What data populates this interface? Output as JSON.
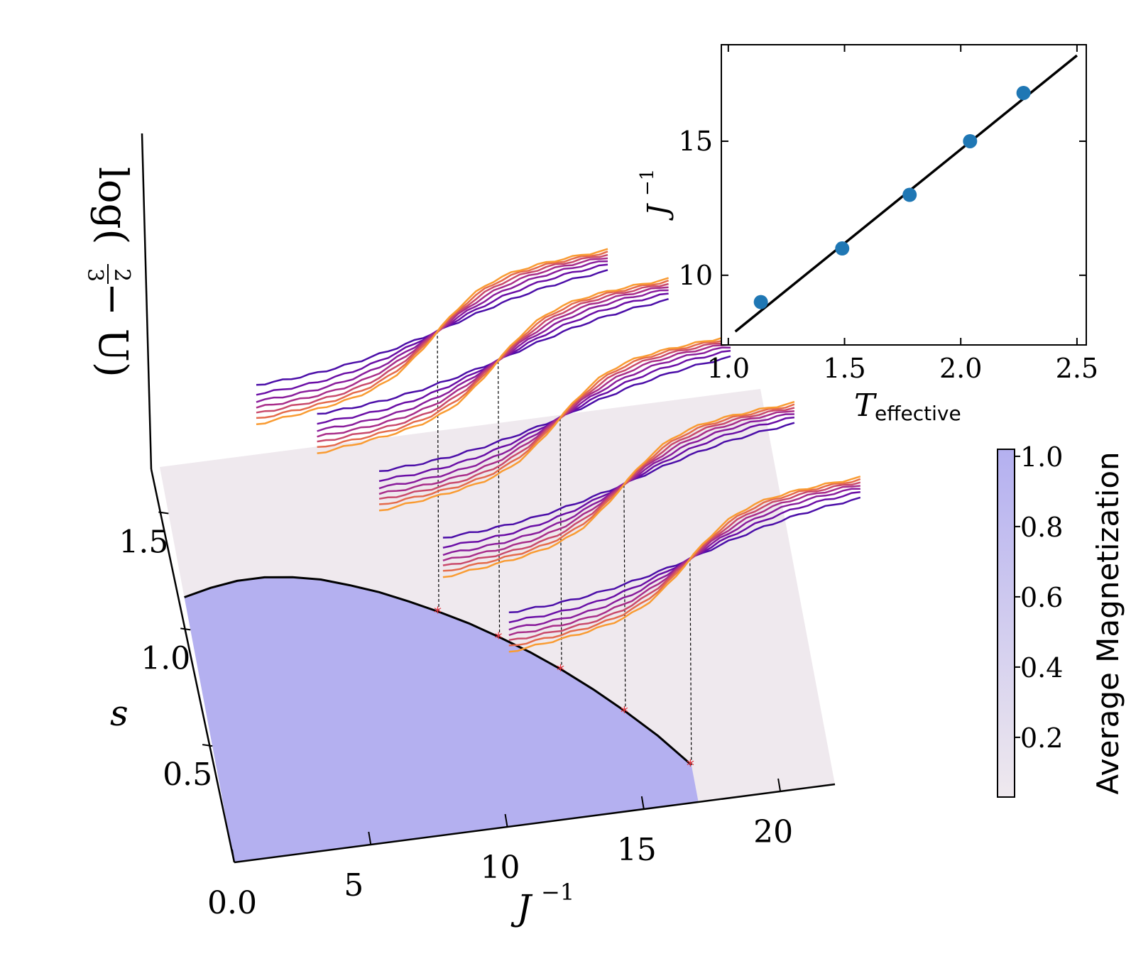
{
  "chart_data": [
    {
      "type": "surface3d",
      "title": "",
      "xlabel": "J^{-1}",
      "xlabel_base": "J",
      "xlabel_sup": "−1",
      "ylabel": "s",
      "zlabel": "log(2/3 − U)",
      "zlabel_text": "log(",
      "zlabel_num": "2",
      "zlabel_den": "3",
      "zlabel_tail": " − U)",
      "x_ticks": [
        "0.0",
        "5",
        "10",
        "15",
        "20"
      ],
      "s_ticks": [
        "0.5",
        "1.0",
        "1.5"
      ],
      "x_range": [
        0,
        22
      ],
      "s_range": [
        0,
        1.7
      ],
      "colorbar": {
        "label": "Average Magnetization",
        "ticks": [
          "0.2",
          "0.4",
          "0.6",
          "0.8",
          "1.0"
        ],
        "tick_values": [
          0.2,
          0.4,
          0.6,
          0.8,
          1.0
        ],
        "range": [
          0.03,
          1.02
        ],
        "color_low": "#efe9ee",
        "color_high": "#b4b0f0"
      },
      "phase_boundary": {
        "color": "#000000",
        "x": [
          0,
          1,
          2,
          3,
          4,
          5,
          6,
          7,
          8,
          9,
          10,
          11,
          12,
          13,
          14,
          15,
          16,
          17
        ],
        "s": [
          1.14,
          1.165,
          1.18,
          1.18,
          1.165,
          1.14,
          1.1,
          1.055,
          1.0,
          0.94,
          0.875,
          0.8,
          0.72,
          0.63,
          0.53,
          0.42,
          0.3,
          0.16
        ]
      },
      "critical_points": {
        "color": "#e8343e",
        "x": [
          9,
          11,
          13,
          15,
          17
        ],
        "s": [
          0.94,
          0.8,
          0.63,
          0.42,
          0.16
        ]
      },
      "binder_curves": {
        "note_colors": [
          "#4b0ea8",
          "#6a0ea6",
          "#8a1d9c",
          "#a92e8a",
          "#c94a6c",
          "#e46b4c",
          "#f99b32"
        ],
        "groups": [
          {
            "J_inv": 9,
            "curves": 7
          },
          {
            "J_inv": 11,
            "curves": 7
          },
          {
            "J_inv": 13,
            "curves": 7
          },
          {
            "J_inv": 15,
            "curves": 7
          },
          {
            "J_inv": 17,
            "curves": 7
          }
        ]
      }
    },
    {
      "type": "scatter",
      "title": "",
      "xlabel": "T_effective",
      "xlabel_base": "T",
      "xlabel_sub": "effective",
      "ylabel": "J^{-1}",
      "ylabel_base": "J",
      "ylabel_sup": "−1",
      "xlim": [
        0.97,
        2.54
      ],
      "ylim": [
        7.4,
        18.6
      ],
      "x_ticks": [
        "1.0",
        "1.5",
        "2.0",
        "2.5"
      ],
      "x_tick_values": [
        1.0,
        1.5,
        2.0,
        2.5
      ],
      "y_ticks": [
        "10",
        "15"
      ],
      "y_tick_values": [
        10,
        15
      ],
      "points": {
        "color": "#1f77b4",
        "x": [
          1.14,
          1.49,
          1.78,
          2.04,
          2.27
        ],
        "y": [
          9,
          11,
          13,
          15,
          16.8
        ]
      },
      "fit_line": {
        "color": "#000000",
        "x": [
          1.03,
          2.5
        ],
        "y": [
          7.9,
          18.2
        ]
      }
    }
  ]
}
